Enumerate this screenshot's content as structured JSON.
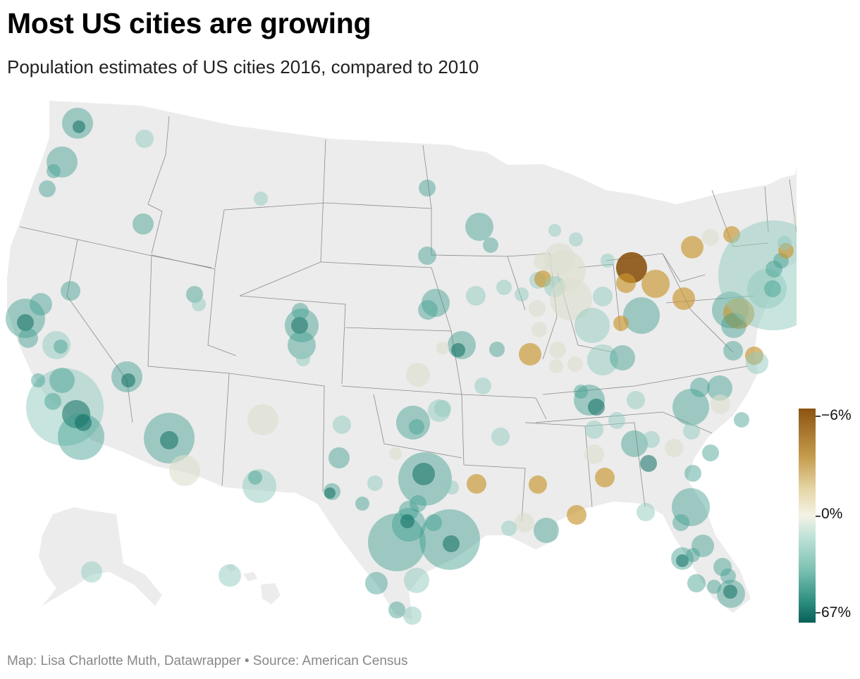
{
  "title": "Most US cities are growing",
  "subtitle": "Population estimates of US cities 2016, compared to 2010",
  "legend": {
    "label_top": "−6%",
    "label_mid": "0%",
    "label_bottom": "67%",
    "min_change_pct": -6,
    "max_change_pct": 67
  },
  "footer": "Map: Lisa Charlotte Muth, Datawrapper • Source: American Census",
  "colors": {
    "land": "#ececec",
    "borders": "#8a8a8a",
    "declining": "#8c5412",
    "neutral": "#f4f2e4",
    "growing": "#075f57"
  }
}
